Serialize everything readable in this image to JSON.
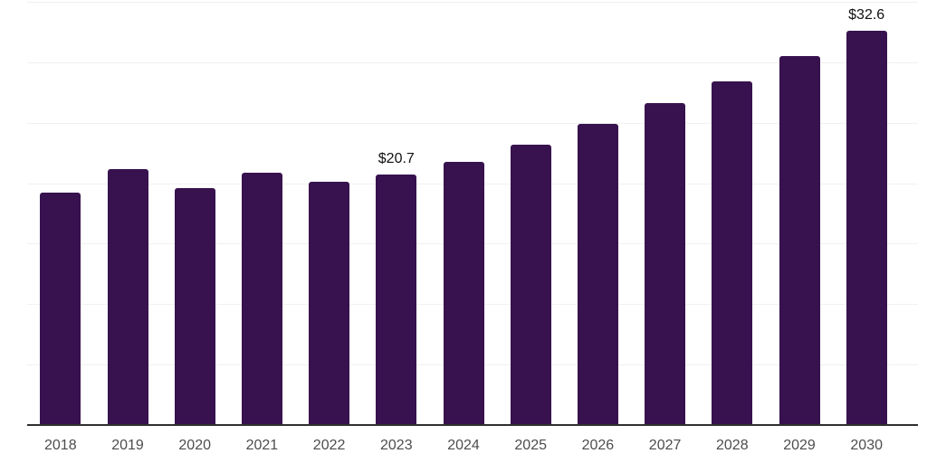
{
  "chart_data": {
    "type": "bar",
    "title": "",
    "xlabel": "",
    "ylabel": "",
    "categories": [
      "2018",
      "2019",
      "2020",
      "2021",
      "2022",
      "2023",
      "2024",
      "2025",
      "2026",
      "2027",
      "2028",
      "2029",
      "2030"
    ],
    "values": [
      19.2,
      21.2,
      19.6,
      20.9,
      20.1,
      20.7,
      21.8,
      23.2,
      24.9,
      26.6,
      28.4,
      30.5,
      32.6
    ],
    "value_labels": [
      "",
      "",
      "",
      "",
      "",
      "$20.7",
      "",
      "",
      "",
      "",
      "",
      "",
      "$32.6"
    ],
    "ylim": [
      0,
      35
    ],
    "gridline_step": 5,
    "grid": true,
    "legend": false,
    "y_axis_labels_visible": false,
    "colors": {
      "bar": "#37124E",
      "gridline": "#f0f0f0",
      "axis_line": "#2f2f2f",
      "x_tick_text": "#4d4d4d",
      "value_label_text": "#111111",
      "background": "#ffffff"
    }
  }
}
